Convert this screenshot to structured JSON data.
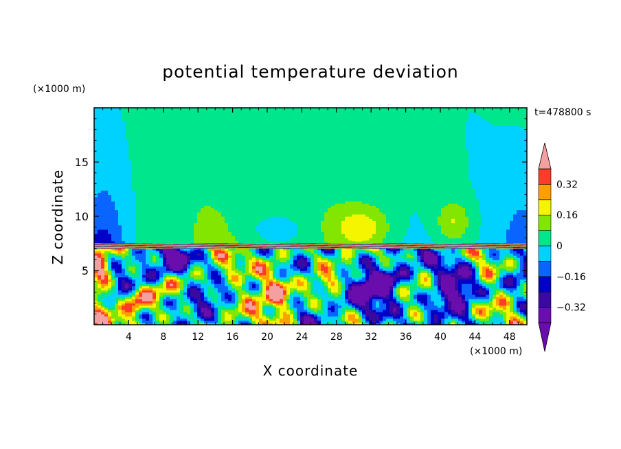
{
  "chart_data": {
    "type": "heatmap",
    "title": "potential temperature deviation",
    "xlabel": "X coordinate",
    "ylabel": "Z coordinate",
    "x_unit": "(×1000 m)",
    "y_unit": "(×1000 m)",
    "time_label": "t=478800 s",
    "xlim": [
      0,
      50
    ],
    "ylim": [
      0,
      20
    ],
    "x_ticks": [
      4,
      8,
      12,
      16,
      20,
      24,
      28,
      32,
      36,
      40,
      44,
      48
    ],
    "y_ticks": [
      5,
      10,
      15
    ],
    "colorbar": {
      "levels": [
        -0.4,
        -0.32,
        -0.24,
        -0.16,
        -0.08,
        0,
        0.08,
        0.16,
        0.24,
        0.32,
        0.4
      ],
      "tick_labels": [
        "0.32",
        "0.16",
        "0",
        "−0.16",
        "−0.32"
      ],
      "tick_values": [
        0.32,
        0.16,
        0,
        -0.16,
        -0.32
      ],
      "colors": [
        "#6a0dad",
        "#3a0aa0",
        "#0000c8",
        "#0a64ff",
        "#00d2ff",
        "#00e68c",
        "#82e600",
        "#f5f500",
        "#ffa000",
        "#ff3c28",
        "#f5a0a0"
      ],
      "under_color": "#6a0dad",
      "over_color": "#f5a0a0"
    },
    "field_description_values": {
      "upper_region_z_range": [
        7.5,
        20
      ],
      "upper_region_typical_value": 0.02,
      "lower_region_z_range": [
        0,
        7.5
      ],
      "interface_height": 7.4
    }
  }
}
